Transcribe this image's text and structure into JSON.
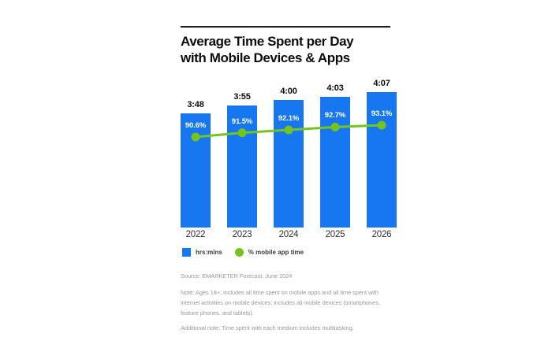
{
  "chart_data": {
    "type": "bar",
    "title": "Average Time Spent per Day\nwith Mobile Devices & Apps",
    "categories": [
      "2022",
      "2023",
      "2024",
      "2025",
      "2026"
    ],
    "series": [
      {
        "name": "hrs:mins",
        "type": "bar",
        "labels": [
          "3:48",
          "3:55",
          "4:00",
          "4:03",
          "4:07"
        ],
        "values_minutes": [
          228,
          235,
          240,
          243,
          247
        ]
      },
      {
        "name": "% mobile app time",
        "type": "line",
        "labels": [
          "90.6%",
          "91.5%",
          "92.1%",
          "92.7%",
          "93.1%"
        ],
        "values_percent": [
          90.6,
          91.5,
          92.1,
          92.7,
          93.1
        ]
      }
    ],
    "colors": {
      "bar": "#1777f0",
      "line": "#75c41d"
    },
    "legend_position": "bottom",
    "grid": false
  },
  "legend": {
    "bars_label": "hrs:mins",
    "line_label": "% mobile app time"
  },
  "notes": {
    "source": "Source: EMARKETER Forecast, June 2024",
    "note": "Note: Ages 18+; includes all time spent on mobile apps and all time spent with internet activities on mobile devices; includes all mobile devices (smartphones, feature phones, and tablets).",
    "additional": "Additional note: Time spent with each medium includes multitasking."
  }
}
